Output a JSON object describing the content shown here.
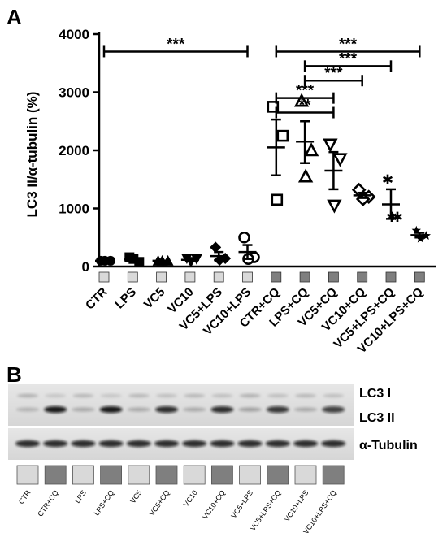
{
  "panel_a": {
    "letter": "A",
    "ylabel": "LC3 II/α-tubulin (%)"
  },
  "panel_b": {
    "letter": "B",
    "band_labels": [
      "LC3 I",
      "LC3 II",
      "α-Tubulin"
    ],
    "lane_labels": [
      "CTR",
      "CTR+CQ",
      "LPS",
      "LPS+CQ",
      "VC5",
      "VC5+CQ",
      "VC10",
      "VC10+CQ",
      "VC5+LPS",
      "VC5+LPS+CQ",
      "VC10+LPS",
      "VC10+LPS+CQ"
    ],
    "lane_box_colors": [
      "#d9d9d9",
      "#7f7f7f",
      "#d9d9d9",
      "#7f7f7f",
      "#d9d9d9",
      "#7f7f7f",
      "#d9d9d9",
      "#7f7f7f",
      "#d9d9d9",
      "#7f7f7f",
      "#d9d9d9",
      "#7f7f7f"
    ]
  },
  "chart_data": {
    "type": "scatter",
    "ylabel": "LC3 II/α-tubulin (%)",
    "ylim": [
      0,
      4000
    ],
    "yticks": [
      0,
      1000,
      2000,
      3000,
      4000
    ],
    "categories": [
      "CTR",
      "LPS",
      "VC5",
      "VC10",
      "VC5+LPS",
      "VC10+LPS",
      "CTR+CQ",
      "LPS+CQ",
      "VC5+CQ",
      "VC10+CQ",
      "VC5+LPS+CQ",
      "VC10+LPS+CQ"
    ],
    "category_box_colors": [
      "#d9d9d9",
      "#d9d9d9",
      "#d9d9d9",
      "#d9d9d9",
      "#d9d9d9",
      "#d9d9d9",
      "#7f7f7f",
      "#7f7f7f",
      "#7f7f7f",
      "#7f7f7f",
      "#7f7f7f",
      "#7f7f7f"
    ],
    "series": [
      {
        "category": "CTR",
        "marker": "circle",
        "points": [
          100,
          100,
          100
        ],
        "mean": 100,
        "sem_low": 100,
        "sem_high": 100
      },
      {
        "category": "LPS",
        "marker": "square",
        "points": [
          160,
          80,
          130
        ],
        "mean": 120,
        "sem_low": 95,
        "sem_high": 145
      },
      {
        "category": "VC5",
        "marker": "triangle-up",
        "points": [
          100,
          100,
          100
        ],
        "mean": 100,
        "sem_low": 100,
        "sem_high": 100
      },
      {
        "category": "VC10",
        "marker": "triangle-down",
        "points": [
          140,
          130,
          80
        ],
        "mean": 115,
        "sem_low": 90,
        "sem_high": 140
      },
      {
        "category": "VC5+LPS",
        "marker": "diamond",
        "points": [
          330,
          140,
          110
        ],
        "mean": 180,
        "sem_low": 110,
        "sem_high": 250
      },
      {
        "category": "VC10+LPS",
        "marker": "circle-open",
        "points": [
          500,
          160,
          130
        ],
        "mean": 250,
        "sem_low": 130,
        "sem_high": 370
      },
      {
        "category": "CTR+CQ",
        "marker": "square-open",
        "points": [
          2750,
          2250,
          1150
        ],
        "mean": 2050,
        "sem_low": 1570,
        "sem_high": 2530
      },
      {
        "category": "LPS+CQ",
        "marker": "triangle-up-open",
        "points": [
          2850,
          2000,
          1550
        ],
        "mean": 2150,
        "sem_low": 1780,
        "sem_high": 2500
      },
      {
        "category": "VC5+CQ",
        "marker": "triangle-down-open",
        "points": [
          2100,
          1850,
          1050
        ],
        "mean": 1650,
        "sem_low": 1330,
        "sem_high": 1970
      },
      {
        "category": "VC10+CQ",
        "marker": "diamond-open",
        "points": [
          1320,
          1200,
          1160
        ],
        "mean": 1225,
        "sem_low": 1180,
        "sem_high": 1270
      },
      {
        "category": "VC5+LPS+CQ",
        "marker": "asterisk",
        "points": [
          1500,
          850,
          850
        ],
        "mean": 1070,
        "sem_low": 820,
        "sem_high": 1330
      },
      {
        "category": "VC10+LPS+CQ",
        "marker": "star",
        "points": [
          620,
          530,
          480
        ],
        "mean": 540,
        "sem_low": 500,
        "sem_high": 580
      }
    ],
    "significance": [
      {
        "from": "CTR",
        "to": "VC10+LPS",
        "y": 3700,
        "label": "***"
      },
      {
        "from": "CTR+CQ",
        "to": "VC10+LPS+CQ",
        "y": 3700,
        "label": "***"
      },
      {
        "from": "LPS+CQ",
        "to": "VC5+LPS+CQ",
        "y": 3450,
        "label": "***"
      },
      {
        "from": "LPS+CQ",
        "to": "VC10+CQ",
        "y": 3200,
        "label": "***"
      },
      {
        "from": "CTR+CQ",
        "to": "VC5+CQ",
        "y": 2900,
        "label": "***"
      },
      {
        "from": "CTR+CQ",
        "to": "VC5+CQ",
        "y": 2650,
        "label": "**"
      }
    ]
  }
}
